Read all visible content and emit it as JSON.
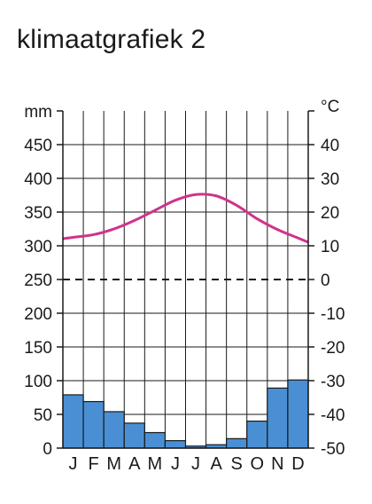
{
  "chart_data": {
    "type": "climate-graph",
    "title": "klimaatgrafiek 2",
    "categories": [
      "J",
      "F",
      "M",
      "A",
      "M",
      "J",
      "J",
      "A",
      "S",
      "O",
      "N",
      "D"
    ],
    "left_axis": {
      "unit_label": "mm",
      "ylim": [
        0,
        500
      ],
      "ticks": [
        0,
        50,
        100,
        150,
        200,
        250,
        300,
        350,
        400,
        450
      ]
    },
    "right_axis": {
      "unit_label": "°C",
      "ylim": [
        -50,
        50
      ],
      "ticks": [
        -50,
        -40,
        -30,
        -20,
        -10,
        0,
        10,
        20,
        30,
        40
      ]
    },
    "series": [
      {
        "type": "bar",
        "axis": "left",
        "color": "#4a8fd4",
        "values": [
          79,
          69,
          54,
          37,
          23,
          11,
          3,
          5,
          14,
          40,
          89,
          101
        ]
      },
      {
        "type": "line",
        "axis": "right",
        "color": "#d0338a",
        "values": [
          12.5,
          13.3,
          15.0,
          17.5,
          20.5,
          23.5,
          25.2,
          24.8,
          22.0,
          18.0,
          14.8,
          12.3
        ]
      }
    ],
    "zero_line": {
      "axis": "right",
      "value": 0,
      "style": "dashed"
    },
    "grid": true
  }
}
